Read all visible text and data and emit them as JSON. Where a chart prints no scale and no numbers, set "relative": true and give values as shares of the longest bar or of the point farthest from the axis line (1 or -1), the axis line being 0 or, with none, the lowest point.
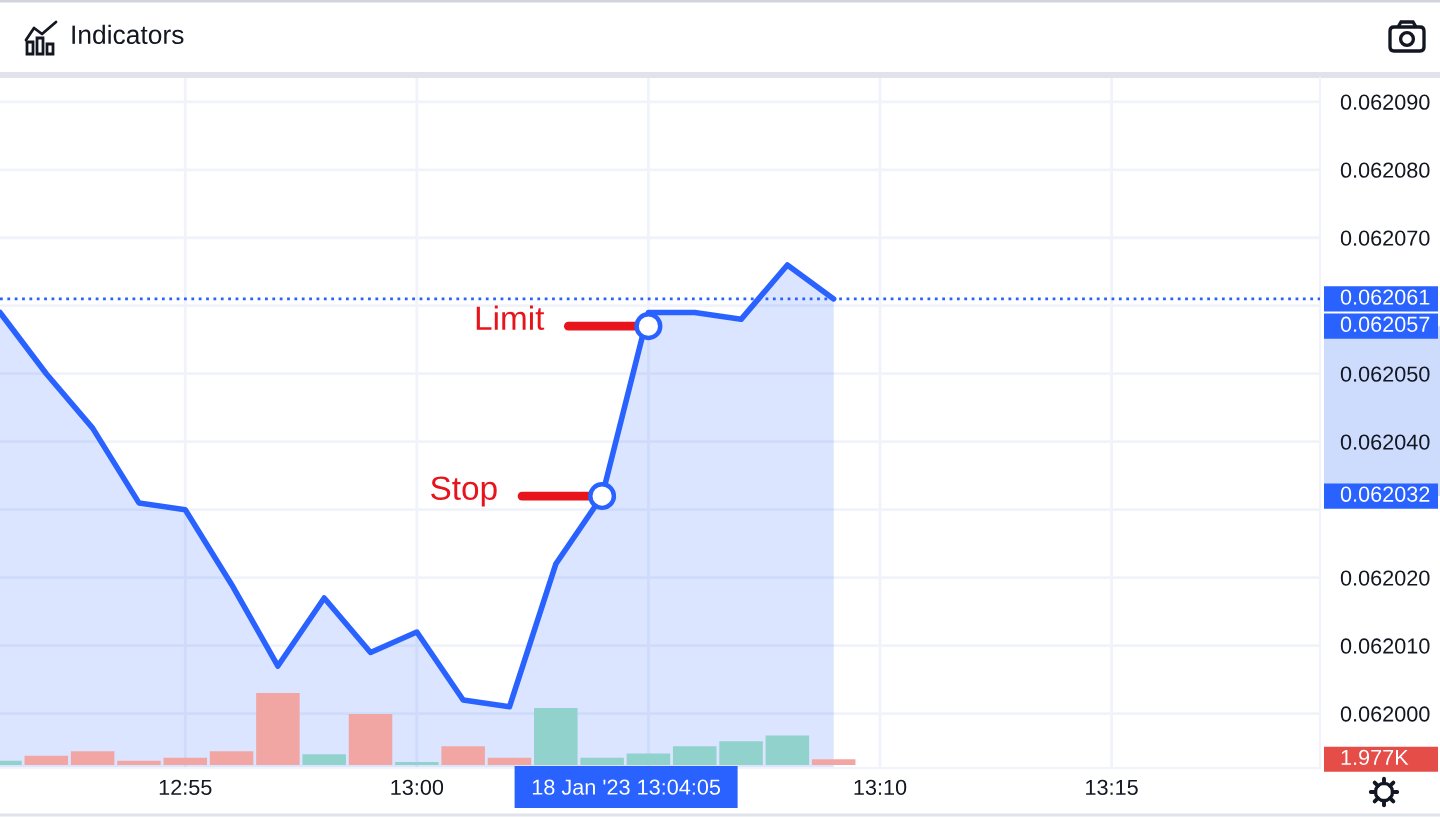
{
  "chart_data": [
    {
      "type": "area",
      "x": [
        "2023-01-18T12:51",
        "2023-01-18T12:52",
        "2023-01-18T12:53",
        "2023-01-18T12:54",
        "2023-01-18T12:55",
        "2023-01-18T12:56",
        "2023-01-18T12:57",
        "2023-01-18T12:58",
        "2023-01-18T12:59",
        "2023-01-18T13:00",
        "2023-01-18T13:01",
        "2023-01-18T13:02",
        "2023-01-18T13:03",
        "2023-01-18T13:04",
        "2023-01-18T13:05",
        "2023-01-18T13:06",
        "2023-01-18T13:07",
        "2023-01-18T13:08",
        "2023-01-18T13:09"
      ],
      "series": [
        {
          "color": "#2962ff",
          "values": [
            0.062059,
            0.06205,
            0.062042,
            0.062031,
            0.06203,
            0.062019,
            0.062007,
            0.062017,
            0.062009,
            0.062012,
            0.062002,
            0.062001,
            0.062022,
            0.062032,
            0.062059,
            0.062059,
            0.062058,
            0.062066,
            0.062061
          ]
        }
      ],
      "xlim": [
        "2023-01-18T12:51",
        "2023-01-18T13:19:30"
      ],
      "xticks": [
        {
          "value": "2023-01-18T12:55",
          "label": "12:55"
        },
        {
          "value": "2023-01-18T13:00",
          "label": "13:00"
        },
        {
          "value": "2023-01-18T13:05",
          "label": null
        },
        {
          "value": "2023-01-18T13:10",
          "label": "13:10"
        },
        {
          "value": "2023-01-18T13:15",
          "label": "13:15"
        }
      ],
      "ylim": [
        0.061992,
        0.0620935
      ],
      "yticks": [
        {
          "value": 0.062,
          "label": "0.062000"
        },
        {
          "value": 0.06201,
          "label": "0.062010"
        },
        {
          "value": 0.06202,
          "label": "0.062020"
        },
        {
          "value": 0.06203,
          "label": null
        },
        {
          "value": 0.06204,
          "label": "0.062040"
        },
        {
          "value": 0.06205,
          "label": "0.062050"
        },
        {
          "value": 0.06206,
          "label": null
        },
        {
          "value": 0.06207,
          "label": "0.062070"
        },
        {
          "value": 0.06208,
          "label": "0.062080"
        },
        {
          "value": 0.06209,
          "label": "0.062090"
        }
      ],
      "grid": true,
      "ref_lines": [
        {
          "axis": "y",
          "value": 0.062061,
          "label": "0.062061",
          "color": "#2962ff",
          "line_style": "dotted"
        }
      ],
      "annotations": [
        "Indicators",
        {
          "text": "Limit",
          "x": "2023-01-18T13:05",
          "y": 0.062057
        },
        {
          "text": "Stop",
          "x": "2023-01-18T13:04",
          "y": 0.062032
        },
        "0.062057",
        "0.062032",
        "18 Jan '23 13:04:05"
      ]
    },
    {
      "type": "bar",
      "x": [
        "2023-01-18T12:51",
        "2023-01-18T12:52",
        "2023-01-18T12:53",
        "2023-01-18T12:54",
        "2023-01-18T12:55",
        "2023-01-18T12:56",
        "2023-01-18T12:57",
        "2023-01-18T12:58",
        "2023-01-18T12:59",
        "2023-01-18T13:00",
        "2023-01-18T13:01",
        "2023-01-18T13:02",
        "2023-01-18T13:03",
        "2023-01-18T13:04",
        "2023-01-18T13:05",
        "2023-01-18T13:06",
        "2023-01-18T13:07",
        "2023-01-18T13:08",
        "2023-01-18T13:09"
      ],
      "values": [
        0.06,
        0.13,
        0.19,
        0.06,
        0.1,
        0.19,
        1,
        0.15,
        0.71,
        0.04,
        0.26,
        0.1,
        0.79,
        0.1,
        0.16,
        0.26,
        0.33,
        0.41,
        0.08
      ],
      "colors": [
        "#92d2cc",
        "#f2a6a4",
        "#f2a6a4",
        "#f2a6a4",
        "#f2a6a4",
        "#f2a6a4",
        "#f2a6a4",
        "#92d2cc",
        "#f2a6a4",
        "#92d2cc",
        "#f2a6a4",
        "#f2a6a4",
        "#92d2cc",
        "#92d2cc",
        "#92d2cc",
        "#92d2cc",
        "#92d2cc",
        "#92d2cc",
        "#f2a6a4"
      ],
      "relative": true,
      "xlim": [
        "2023-01-18T12:51",
        "2023-01-18T13:19:30"
      ],
      "annotations": [
        "1.977K"
      ]
    }
  ]
}
